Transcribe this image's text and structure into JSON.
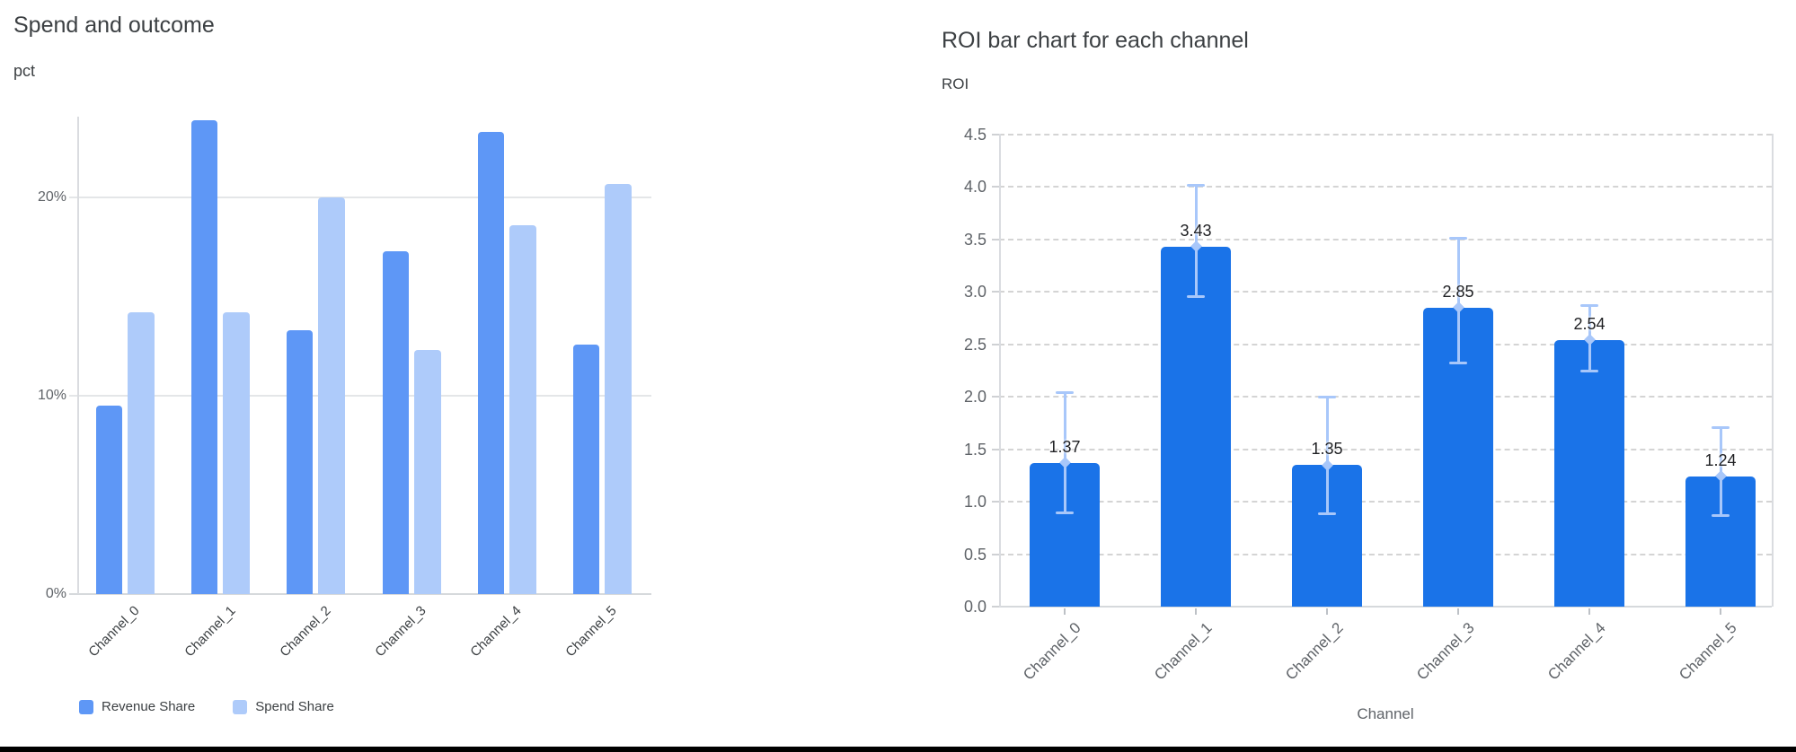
{
  "page": {
    "background": "#ffffff",
    "bottom_rule_color": "#000000"
  },
  "chart_data": [
    {
      "type": "bar",
      "title": "Spend and outcome",
      "ylabel": "pct",
      "xlabel": "",
      "categories": [
        "Channel_0",
        "Channel_1",
        "Channel_2",
        "Channel_3",
        "Channel_4",
        "Channel_5"
      ],
      "series": [
        {
          "name": "Revenue Share",
          "color": "#5e97f6",
          "values": [
            9.5,
            23.9,
            13.3,
            17.3,
            23.3,
            12.6
          ]
        },
        {
          "name": "Spend Share",
          "color": "#aecbfa",
          "values": [
            14.2,
            14.2,
            20.0,
            12.3,
            18.6,
            20.7
          ]
        }
      ],
      "value_format": "percent",
      "ylim": [
        0,
        24
      ],
      "yticks": [
        "0%",
        "10%",
        "20%"
      ],
      "ytick_values": [
        0,
        10,
        20
      ],
      "grid": "solid-horizontal",
      "legend_position": "bottom"
    },
    {
      "type": "bar",
      "title": "ROI bar chart for each channel",
      "ylabel": "ROI",
      "xlabel": "Channel",
      "categories": [
        "Channel_0",
        "Channel_1",
        "Channel_2",
        "Channel_3",
        "Channel_4",
        "Channel_5"
      ],
      "values": [
        1.37,
        3.43,
        1.35,
        2.85,
        2.54,
        1.24
      ],
      "error_low": [
        0.89,
        2.95,
        0.88,
        2.32,
        2.24,
        0.86
      ],
      "error_high": [
        2.04,
        4.02,
        2.0,
        3.51,
        2.87,
        1.71
      ],
      "bar_color": "#1a73e8",
      "error_color": "#a8c7fa",
      "ylim": [
        0,
        4.5
      ],
      "yticks": [
        "0.0",
        "0.5",
        "1.0",
        "1.5",
        "2.0",
        "2.5",
        "3.0",
        "3.5",
        "4.0",
        "4.5"
      ],
      "grid": "dashed-horizontal",
      "legend_position": "none"
    }
  ]
}
